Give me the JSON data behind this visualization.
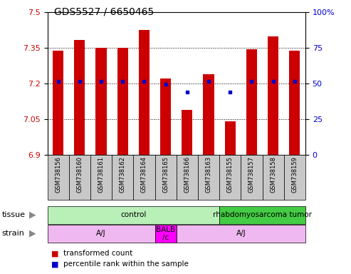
{
  "title": "GDS5527 / 6650465",
  "samples": [
    "GSM738156",
    "GSM738160",
    "GSM738161",
    "GSM738162",
    "GSM738164",
    "GSM738165",
    "GSM738166",
    "GSM738163",
    "GSM738155",
    "GSM738157",
    "GSM738158",
    "GSM738159"
  ],
  "bar_values": [
    7.34,
    7.385,
    7.35,
    7.352,
    7.425,
    7.22,
    7.09,
    7.24,
    7.04,
    7.345,
    7.4,
    7.34
  ],
  "percentile_values": [
    7.208,
    7.209,
    7.208,
    7.208,
    7.208,
    7.198,
    7.163,
    7.208,
    7.163,
    7.208,
    7.208,
    7.208
  ],
  "bar_bottom": 6.9,
  "ylim_min": 6.9,
  "ylim_max": 7.5,
  "yticks_left": [
    6.9,
    7.05,
    7.2,
    7.35,
    7.5
  ],
  "yticks_right": [
    0,
    25,
    50,
    75,
    100
  ],
  "bar_color": "#cc0000",
  "dot_color": "#0000cc",
  "tissue_groups": [
    {
      "label": "control",
      "start": 0,
      "end": 8,
      "color": "#b8f0b8"
    },
    {
      "label": "rhabdomyosarcoma tumor",
      "start": 8,
      "end": 12,
      "color": "#44cc44"
    }
  ],
  "strain_groups": [
    {
      "label": "A/J",
      "start": 0,
      "end": 5,
      "color": "#f0b8f0"
    },
    {
      "label": "BALB\n/c",
      "start": 5,
      "end": 6,
      "color": "#ff00ff"
    },
    {
      "label": "A/J",
      "start": 6,
      "end": 12,
      "color": "#f0b8f0"
    }
  ],
  "legend_items": [
    {
      "color": "#cc0000",
      "label": "transformed count"
    },
    {
      "color": "#0000cc",
      "label": "percentile rank within the sample"
    }
  ],
  "tissue_label": "tissue",
  "strain_label": "strain"
}
